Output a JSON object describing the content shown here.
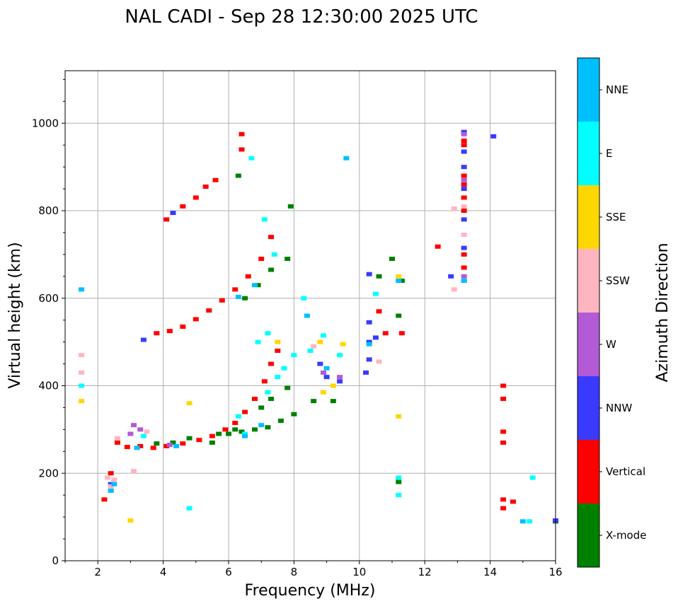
{
  "chart_data": {
    "type": "scatter",
    "title": "NAL CADI - Sep 28 12:30:00 2025 UTC",
    "xlabel": "Frequency (MHz)",
    "ylabel": "Virtual height (km)",
    "xlim": [
      1,
      16
    ],
    "ylim": [
      0,
      1120
    ],
    "xticks": [
      2,
      4,
      6,
      8,
      10,
      12,
      14,
      16
    ],
    "yticks": [
      0,
      200,
      400,
      600,
      800,
      1000
    ],
    "grid": true,
    "colorbar": {
      "label": "Azimuth Direction",
      "categories": [
        "X-mode",
        "Vertical",
        "NNW",
        "W",
        "SSW",
        "SSE",
        "E",
        "NNE"
      ],
      "colors": [
        "#008000",
        "#ff0000",
        "#3a3aff",
        "#b35ad6",
        "#ffb6c1",
        "#ffd700",
        "#00ffff",
        "#00bfff"
      ]
    },
    "series": [
      {
        "name": "X-mode",
        "color": "#008000",
        "points": [
          [
            5.7,
            290
          ],
          [
            6.0,
            290
          ],
          [
            6.4,
            295
          ],
          [
            6.8,
            300
          ],
          [
            7.2,
            305
          ],
          [
            7.6,
            320
          ],
          [
            8.0,
            335
          ],
          [
            8.6,
            365
          ],
          [
            7.0,
            350
          ],
          [
            7.3,
            370
          ],
          [
            7.8,
            395
          ],
          [
            6.5,
            600
          ],
          [
            6.9,
            630
          ],
          [
            7.3,
            665
          ],
          [
            7.8,
            690
          ],
          [
            5.5,
            270
          ],
          [
            6.2,
            300
          ],
          [
            11.2,
            560
          ],
          [
            11.3,
            640
          ],
          [
            11.0,
            690
          ],
          [
            10.6,
            650
          ],
          [
            3.8,
            268
          ],
          [
            4.3,
            270
          ],
          [
            4.8,
            280
          ],
          [
            9.2,
            365
          ],
          [
            6.3,
            880
          ],
          [
            7.9,
            810
          ],
          [
            11.2,
            180
          ],
          [
            16,
            90
          ]
        ]
      },
      {
        "name": "Vertical",
        "color": "#ff0000",
        "points": [
          [
            2.2,
            140
          ],
          [
            2.4,
            200
          ],
          [
            2.6,
            270
          ],
          [
            2.9,
            260
          ],
          [
            3.3,
            262
          ],
          [
            3.7,
            258
          ],
          [
            4.1,
            262
          ],
          [
            4.6,
            268
          ],
          [
            5.1,
            276
          ],
          [
            5.5,
            285
          ],
          [
            5.9,
            300
          ],
          [
            6.2,
            315
          ],
          [
            6.5,
            340
          ],
          [
            6.8,
            370
          ],
          [
            7.1,
            410
          ],
          [
            7.3,
            450
          ],
          [
            7.5,
            480
          ],
          [
            3.8,
            520
          ],
          [
            4.2,
            525
          ],
          [
            4.6,
            535
          ],
          [
            5.0,
            552
          ],
          [
            5.4,
            572
          ],
          [
            5.8,
            595
          ],
          [
            6.2,
            620
          ],
          [
            6.6,
            650
          ],
          [
            7.0,
            690
          ],
          [
            7.3,
            740
          ],
          [
            4.1,
            780
          ],
          [
            4.6,
            810
          ],
          [
            5.0,
            830
          ],
          [
            5.3,
            855
          ],
          [
            5.6,
            870
          ],
          [
            6.4,
            940
          ],
          [
            6.4,
            975
          ],
          [
            13.2,
            670
          ],
          [
            13.2,
            700
          ],
          [
            13.2,
            800
          ],
          [
            13.2,
            830
          ],
          [
            13.2,
            860
          ],
          [
            13.2,
            880
          ],
          [
            13.2,
            950
          ],
          [
            13.2,
            960
          ],
          [
            14.4,
            120
          ],
          [
            14.4,
            140
          ],
          [
            14.4,
            270
          ],
          [
            14.4,
            295
          ],
          [
            14.4,
            370
          ],
          [
            14.4,
            400
          ],
          [
            10.6,
            570
          ],
          [
            10.8,
            520
          ],
          [
            11.3,
            520
          ],
          [
            12.4,
            718
          ],
          [
            14.7,
            135
          ]
        ]
      },
      {
        "name": "NNW",
        "color": "#3a3aff",
        "points": [
          [
            13.2,
            980
          ],
          [
            13.2,
            935
          ],
          [
            13.2,
            900
          ],
          [
            13.2,
            850
          ],
          [
            13.2,
            780
          ],
          [
            13.2,
            715
          ],
          [
            13.2,
            640
          ],
          [
            14.1,
            970
          ],
          [
            10.2,
            430
          ],
          [
            10.3,
            460
          ],
          [
            10.3,
            500
          ],
          [
            10.3,
            545
          ],
          [
            10.5,
            510
          ],
          [
            10.3,
            655
          ],
          [
            9.0,
            420
          ],
          [
            9.4,
            410
          ],
          [
            8.8,
            450
          ],
          [
            12.8,
            650
          ],
          [
            16,
            92
          ],
          [
            3.4,
            505
          ],
          [
            4.3,
            795
          ],
          [
            2.4,
            175
          ]
        ]
      },
      {
        "name": "W",
        "color": "#b35ad6",
        "points": [
          [
            3.1,
            310
          ],
          [
            3.3,
            300
          ],
          [
            3.0,
            290
          ],
          [
            9.4,
            420
          ],
          [
            13.2,
            975
          ],
          [
            13.2,
            870
          ],
          [
            13.2,
            650
          ],
          [
            8.9,
            430
          ],
          [
            4.2,
            265
          ]
        ]
      },
      {
        "name": "SSW",
        "color": "#ffb6c1",
        "points": [
          [
            2.4,
            170
          ],
          [
            2.5,
            185
          ],
          [
            2.3,
            190
          ],
          [
            2.6,
            280
          ],
          [
            3.5,
            295
          ],
          [
            8.8,
            500
          ],
          [
            8.6,
            490
          ],
          [
            10.6,
            455
          ],
          [
            12.9,
            620
          ],
          [
            12.9,
            805
          ],
          [
            13.2,
            810
          ],
          [
            13.2,
            745
          ],
          [
            3.1,
            205
          ],
          [
            1.5,
            430
          ],
          [
            1.5,
            470
          ]
        ]
      },
      {
        "name": "SSE",
        "color": "#ffd700",
        "points": [
          [
            9.2,
            400
          ],
          [
            9.5,
            495
          ],
          [
            8.8,
            500
          ],
          [
            8.9,
            385
          ],
          [
            7.5,
            500
          ],
          [
            11.2,
            330
          ],
          [
            3.0,
            92
          ],
          [
            4.8,
            360
          ],
          [
            1.5,
            365
          ],
          [
            11.2,
            650
          ]
        ]
      },
      {
        "name": "E",
        "color": "#00ffff",
        "points": [
          [
            7.2,
            385
          ],
          [
            7.5,
            420
          ],
          [
            7.7,
            440
          ],
          [
            8.0,
            470
          ],
          [
            8.5,
            480
          ],
          [
            8.9,
            515
          ],
          [
            9.4,
            470
          ],
          [
            8.3,
            600
          ],
          [
            7.4,
            700
          ],
          [
            6.7,
            920
          ],
          [
            7.2,
            520
          ],
          [
            6.9,
            500
          ],
          [
            6.5,
            290
          ],
          [
            6.3,
            330
          ],
          [
            11.2,
            150
          ],
          [
            11.2,
            190
          ],
          [
            15.2,
            90
          ],
          [
            15.3,
            190
          ],
          [
            4.8,
            120
          ],
          [
            1.5,
            400
          ],
          [
            3.4,
            285
          ],
          [
            10.5,
            610
          ],
          [
            7.1,
            780
          ]
        ]
      },
      {
        "name": "NNE",
        "color": "#00bfff",
        "points": [
          [
            2.4,
            160
          ],
          [
            2.5,
            175
          ],
          [
            6.5,
            285
          ],
          [
            7.0,
            310
          ],
          [
            6.3,
            603
          ],
          [
            6.8,
            630
          ],
          [
            9.0,
            440
          ],
          [
            8.4,
            560
          ],
          [
            10.3,
            495
          ],
          [
            11.2,
            640
          ],
          [
            15.0,
            90
          ],
          [
            1.5,
            620
          ],
          [
            9.6,
            920
          ],
          [
            13.2,
            640
          ],
          [
            3.2,
            258
          ],
          [
            4.4,
            262
          ]
        ]
      }
    ]
  }
}
